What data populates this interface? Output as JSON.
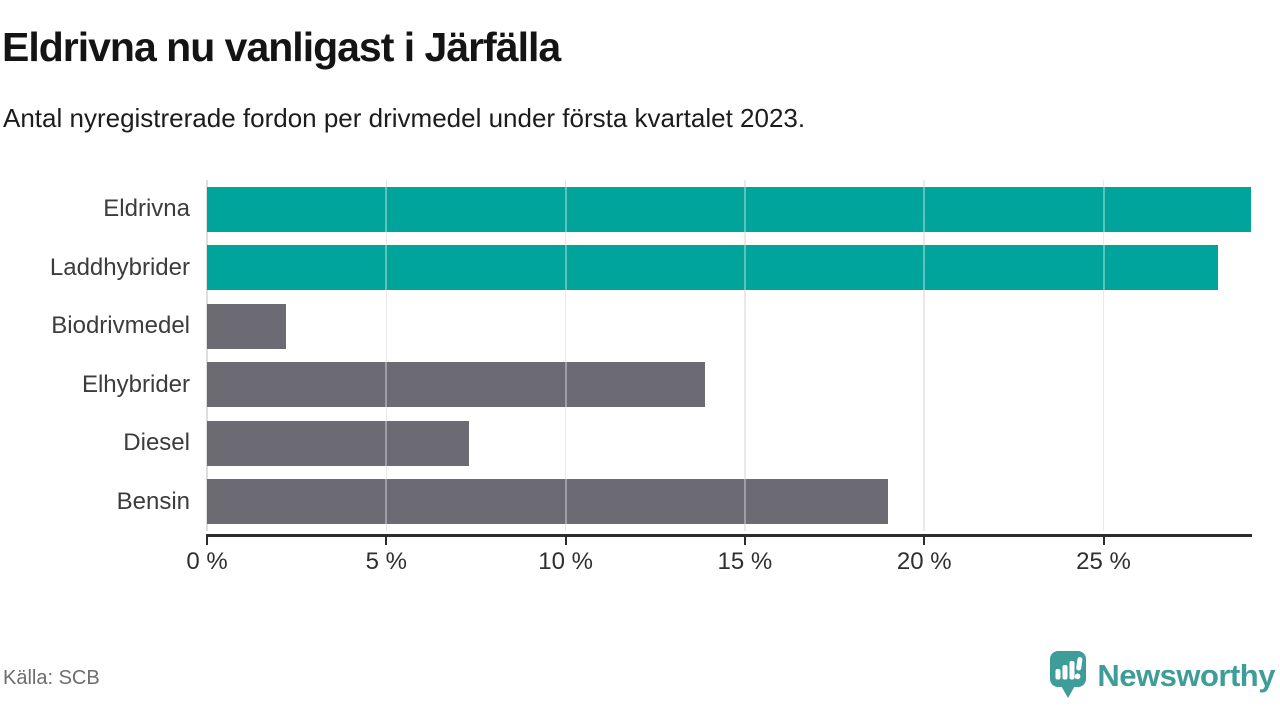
{
  "header": {
    "title": "Eldrivna nu vanligast i Järfälla",
    "subtitle": "Antal nyregistrerade fordon per drivmedel under första kvartalet 2023."
  },
  "chart_data": {
    "type": "bar",
    "orientation": "horizontal",
    "title": "Eldrivna nu vanligast i Järfälla",
    "subtitle": "Antal nyregistrerade fordon per drivmedel under första kvartalet 2023.",
    "categories": [
      "Eldrivna",
      "Laddhybrider",
      "Biodrivmedel",
      "Elhybrider",
      "Diesel",
      "Bensin"
    ],
    "values": [
      29.1,
      28.2,
      2.2,
      13.9,
      7.3,
      19.0
    ],
    "unit": "%",
    "bar_colors": [
      "#00a49b",
      "#00a49b",
      "#6c6b73",
      "#6c6b73",
      "#6c6b73",
      "#6c6b73"
    ],
    "highlight_color": "#00a49b",
    "default_color": "#6c6b73",
    "xlim": [
      0,
      29.14
    ],
    "xticks": [
      0,
      5,
      10,
      15,
      20,
      25
    ],
    "xtick_labels": [
      "0 %",
      "5 %",
      "10 %",
      "15 %",
      "20 %",
      "25 %"
    ],
    "grid": "vertical",
    "legend": "none",
    "xlabel": "",
    "ylabel": ""
  },
  "footer": {
    "source": "Källa: SCB",
    "logo_text": "Newsworthy",
    "logo_color": "#3f9d99"
  }
}
